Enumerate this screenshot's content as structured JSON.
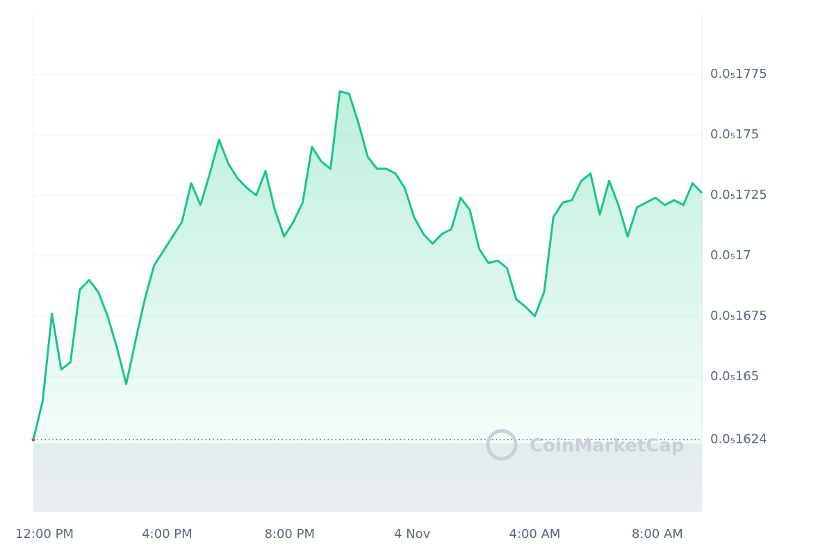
{
  "chart_data": {
    "type": "line",
    "x": [
      "12:00 PM",
      "12:20 PM",
      "12:40 PM",
      "1:00 PM",
      "1:20 PM",
      "1:40 PM",
      "2:00 PM",
      "2:20 PM",
      "2:40 PM",
      "3:00 PM",
      "3:20 PM",
      "3:40 PM",
      "4:00 PM",
      "4:20 PM",
      "4:40 PM",
      "5:00 PM",
      "5:20 PM",
      "5:40 PM",
      "6:00 PM",
      "6:20 PM",
      "6:40 PM",
      "7:00 PM",
      "7:20 PM",
      "7:40 PM",
      "8:00 PM",
      "8:20 PM",
      "8:40 PM",
      "9:00 PM",
      "9:20 PM",
      "9:40 PM",
      "10:00 PM",
      "10:20 PM",
      "10:40 PM",
      "11:00 PM",
      "11:20 PM",
      "11:40 PM",
      "12:00 AM",
      "12:20 AM",
      "12:40 AM",
      "1:00 AM",
      "1:20 AM",
      "1:40 AM",
      "2:00 AM",
      "2:20 AM",
      "2:40 AM",
      "3:00 AM",
      "3:20 AM",
      "3:40 AM",
      "4:00 AM",
      "4:20 AM",
      "4:40 AM",
      "5:00 AM",
      "5:20 AM",
      "5:40 AM",
      "6:00 AM",
      "6:20 AM",
      "6:40 AM",
      "7:00 AM",
      "7:20 AM",
      "7:40 AM",
      "8:00 AM",
      "8:20 AM",
      "8:40 AM",
      "9:00 AM",
      "9:20 AM",
      "9:40 AM",
      "10:00 AM",
      "10:20 AM",
      "10:40 AM",
      "11:00 AM",
      "11:20 AM",
      "11:40 AM",
      "12:00 PM"
    ],
    "values": [
      1.624e-06,
      1.64e-06,
      1.676e-06,
      1.653e-06,
      1.656e-06,
      1.686e-06,
      1.69e-06,
      1.685e-06,
      1.675e-06,
      1.662e-06,
      1.647e-06,
      1.665e-06,
      1.682e-06,
      1.696e-06,
      1.702e-06,
      1.708e-06,
      1.714e-06,
      1.73e-06,
      1.721e-06,
      1.734e-06,
      1.748e-06,
      1.738e-06,
      1.732e-06,
      1.728e-06,
      1.725e-06,
      1.735e-06,
      1.719e-06,
      1.708e-06,
      1.714e-06,
      1.722e-06,
      1.745e-06,
      1.739e-06,
      1.736e-06,
      1.768e-06,
      1.767e-06,
      1.755e-06,
      1.741e-06,
      1.736e-06,
      1.736e-06,
      1.734e-06,
      1.728e-06,
      1.716e-06,
      1.709e-06,
      1.705e-06,
      1.709e-06,
      1.711e-06,
      1.724e-06,
      1.719e-06,
      1.703e-06,
      1.697e-06,
      1.698e-06,
      1.695e-06,
      1.682e-06,
      1.679e-06,
      1.675e-06,
      1.685e-06,
      1.716e-06,
      1.722e-06,
      1.723e-06,
      1.731e-06,
      1.734e-06,
      1.717e-06,
      1.731e-06,
      1.721e-06,
      1.708e-06,
      1.72e-06,
      1.722e-06,
      1.724e-06,
      1.721e-06,
      1.723e-06,
      1.721e-06,
      1.73e-06,
      1.726e-06
    ],
    "color": "#16c784",
    "ylim": [
      1.594e-06,
      1.8e-06
    ],
    "yticks": [
      {
        "value": 1.65e-06,
        "label": "0.0₅165"
      },
      {
        "value": 1.675e-06,
        "label": "0.0₅1675"
      },
      {
        "value": 1.7e-06,
        "label": "0.0₅17"
      },
      {
        "value": 1.725e-06,
        "label": "0.0₅1725"
      },
      {
        "value": 1.75e-06,
        "label": "0.0₅175"
      },
      {
        "value": 1.775e-06,
        "label": "0.0₅1775"
      }
    ],
    "xticks": [
      "12:00 PM",
      "4:00 PM",
      "8:00 PM",
      {
        "value": "12:00 AM",
        "label": "4 Nov"
      },
      "4:00 AM",
      "8:00 AM"
    ],
    "reference_line": {
      "value": 1.624e-06,
      "label": "0.0₅1624",
      "color": "#ea3943"
    },
    "grid": true,
    "watermark": "CoinMarketCap"
  }
}
